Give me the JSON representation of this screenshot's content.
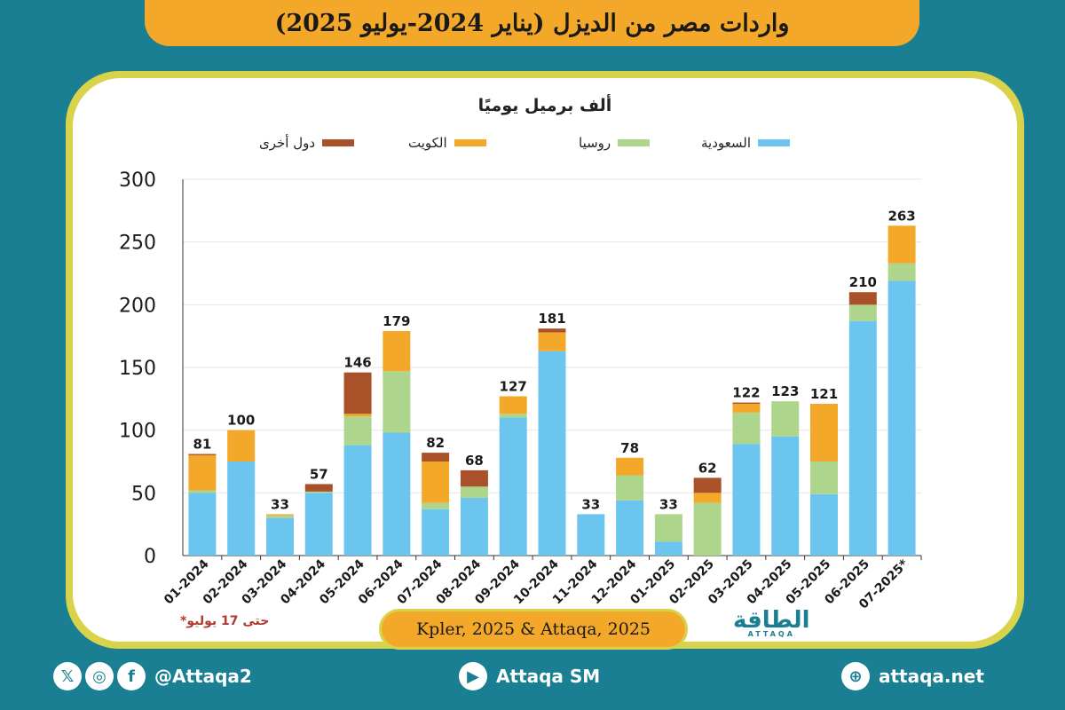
{
  "header": {
    "title": "واردات مصر من الديزل (يناير 2024-يوليو 2025)"
  },
  "unit_label": "ألف برميل يوميًا",
  "legend": [
    {
      "label": "السعودية",
      "color": "#6cc5ef"
    },
    {
      "label": "روسيا",
      "color": "#aed58c"
    },
    {
      "label": "الكويت",
      "color": "#f4a82a"
    },
    {
      "label": "دول أخرى",
      "color": "#a9522a"
    }
  ],
  "chart_data": {
    "type": "bar",
    "stacked": true,
    "title": "واردات مصر من الديزل (يناير 2024-يوليو 2025)",
    "ylabel": "ألف برميل يوميًا",
    "ylim": [
      0,
      300
    ],
    "yticks": [
      0,
      50,
      100,
      150,
      200,
      250,
      300
    ],
    "categories": [
      "01-2024",
      "02-2024",
      "03-2024",
      "04-2024",
      "05-2024",
      "06-2024",
      "07-2024",
      "08-2024",
      "09-2024",
      "10-2024",
      "11-2024",
      "12-2024",
      "01-2025",
      "02-2025",
      "03-2025",
      "04-2025",
      "05-2025",
      "06-2025",
      "07-2025*"
    ],
    "totals": [
      81,
      100,
      33,
      57,
      146,
      179,
      82,
      68,
      127,
      181,
      33,
      78,
      33,
      62,
      122,
      123,
      121,
      210,
      263
    ],
    "series": [
      {
        "name": "السعودية",
        "color": "#6cc5ef",
        "values": [
          50,
          75,
          30,
          50,
          88,
          98,
          37,
          46,
          110,
          163,
          33,
          44,
          11,
          0,
          89,
          95,
          49,
          187,
          219
        ]
      },
      {
        "name": "روسيا",
        "color": "#aed58c",
        "values": [
          2,
          0,
          2,
          1,
          23,
          49,
          5,
          9,
          3,
          0,
          0,
          20,
          22,
          42,
          25,
          28,
          26,
          13,
          14
        ]
      },
      {
        "name": "الكويت",
        "color": "#f4a82a",
        "values": [
          28,
          25,
          1,
          0,
          2,
          32,
          33,
          0,
          14,
          15,
          0,
          14,
          0,
          8,
          7,
          0,
          46,
          0,
          30
        ]
      },
      {
        "name": "دول أخرى",
        "color": "#a9522a",
        "values": [
          1,
          0,
          0,
          6,
          33,
          0,
          7,
          13,
          0,
          3,
          0,
          0,
          0,
          12,
          1,
          0,
          0,
          10,
          0
        ]
      }
    ]
  },
  "note": "*حتى 17 يوليو",
  "source": "Kpler, 2025 & Attaqa, 2025",
  "logo": {
    "text": "الطاقة",
    "sub": "ATTAQA"
  },
  "footer": {
    "social_handle": "@Attaqa2",
    "youtube": "Attaqa SM",
    "website": "attaqa.net",
    "icons": [
      "x-icon",
      "instagram-icon",
      "facebook-icon",
      "youtube-icon",
      "globe-icon"
    ]
  }
}
